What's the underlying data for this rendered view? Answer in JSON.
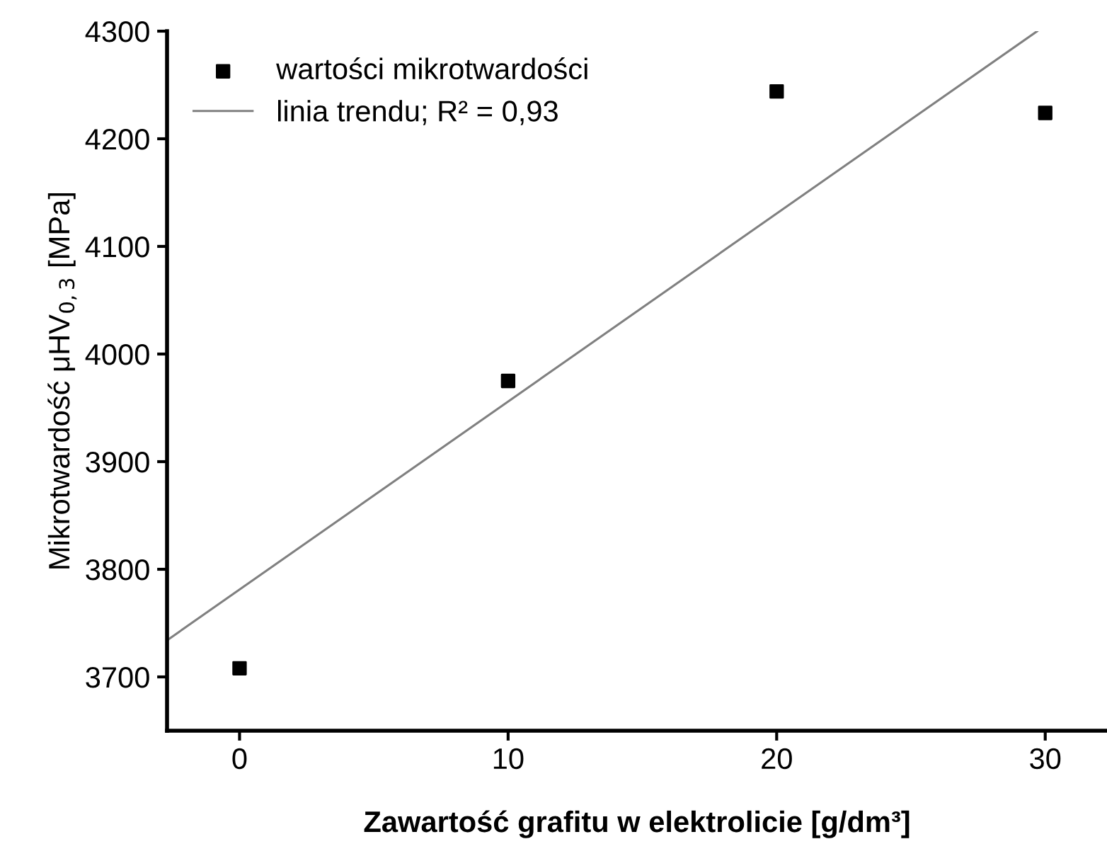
{
  "chart_data": {
    "type": "scatter",
    "xlabel": "Zawartość grafitu w elektrolicie [g/dm³]",
    "ylabel": "Mikrotwardość μHV$_{0,3}$ [MPa]",
    "series": [
      {
        "name": "wartości mikrotwardości",
        "color": "#000000",
        "marker": "square",
        "x": [
          0,
          10,
          20,
          30
        ],
        "values": [
          3708,
          3975,
          4244,
          4224
        ]
      },
      {
        "name": "linia trendu; R² = 0,93",
        "type": "line",
        "color": "#808080",
        "marker": "none",
        "line_style": "solid",
        "x": [
          -2.7,
          29.7
        ],
        "values": [
          3734,
          4300
        ]
      }
    ],
    "xlim": [
      -2.7,
      32.3
    ],
    "xticks": [
      0,
      10,
      20,
      30
    ],
    "ylim": [
      3650,
      4300
    ],
    "yticks": [
      3700,
      3800,
      3900,
      4000,
      4100,
      4200,
      4300
    ],
    "grid": false,
    "legend": "top left"
  }
}
